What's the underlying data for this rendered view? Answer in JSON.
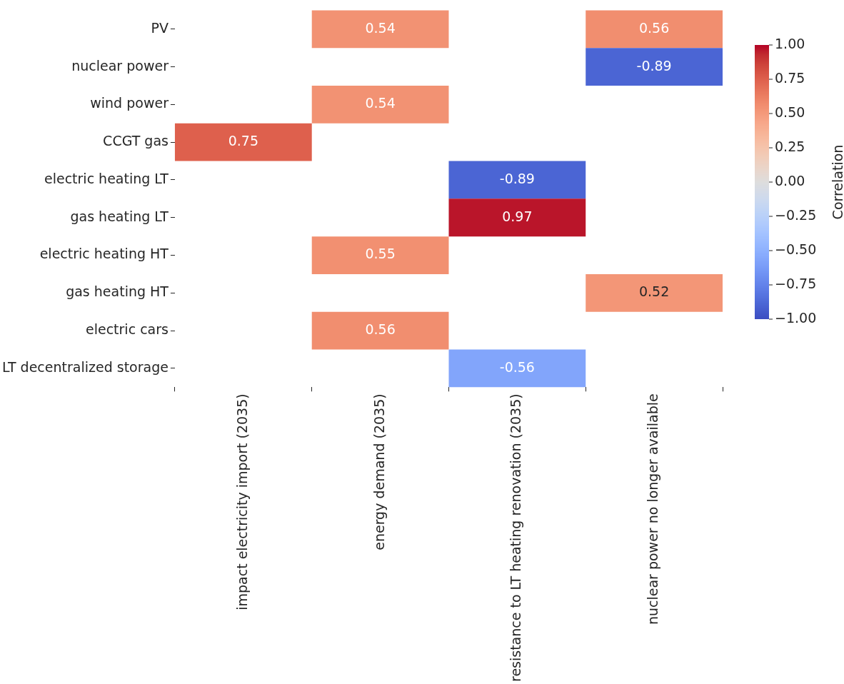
{
  "chart_data": {
    "type": "heatmap",
    "categories": [
      "impact electricity import (2035)",
      "energy demand (2035)",
      "resistance to LT heating renovation (2035)",
      "nuclear power no longer available"
    ],
    "y_categories": [
      "PV",
      "nuclear power",
      "wind power",
      "CCGT gas",
      "electric heating LT",
      "gas heating LT",
      "electric heating HT",
      "gas heating HT",
      "electric cars",
      "LT decentralized storage"
    ],
    "cells": [
      [
        null,
        0.54,
        null,
        0.56
      ],
      [
        null,
        null,
        null,
        -0.89
      ],
      [
        null,
        0.54,
        null,
        null
      ],
      [
        0.75,
        null,
        null,
        null
      ],
      [
        null,
        null,
        -0.89,
        null
      ],
      [
        null,
        null,
        0.97,
        null
      ],
      [
        null,
        0.55,
        null,
        null
      ],
      [
        null,
        null,
        null,
        0.52
      ],
      [
        null,
        0.56,
        null,
        null
      ],
      [
        null,
        null,
        -0.56,
        null
      ]
    ],
    "clim": [
      -1,
      1
    ],
    "cticks": [
      {
        "value": -1,
        "label": "−1.00"
      },
      {
        "value": -0.75,
        "label": "−0.75"
      },
      {
        "value": -0.5,
        "label": "−0.50"
      },
      {
        "value": -0.25,
        "label": "−0.25"
      },
      {
        "value": 0,
        "label": "0.00"
      },
      {
        "value": 0.25,
        "label": "0.25"
      },
      {
        "value": 0.5,
        "label": "0.50"
      },
      {
        "value": 0.75,
        "label": "0.75"
      },
      {
        "value": 1,
        "label": "1.00"
      }
    ],
    "clabel": "Correlation",
    "data_labels": true
  }
}
